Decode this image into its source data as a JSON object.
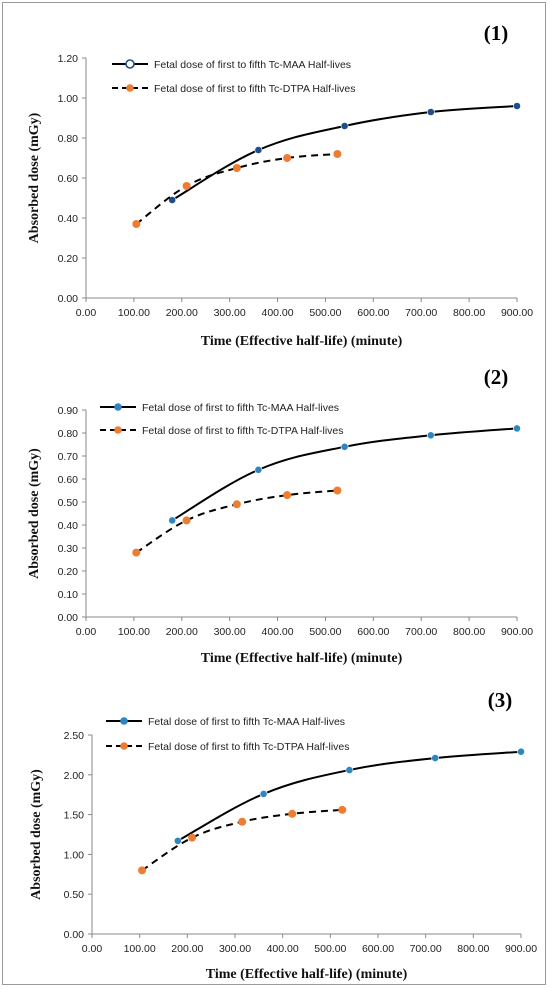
{
  "chart_data": [
    {
      "type": "line",
      "panel_label": "(1)",
      "xlabel": "Time (Effective half-life) (minute)",
      "ylabel": "Absorbed dose (mGy)",
      "xlim": [
        0,
        900
      ],
      "ylim": [
        0,
        1.2
      ],
      "xticks": [
        "0.00",
        "100.00",
        "200.00",
        "300.00",
        "400.00",
        "500.00",
        "600.00",
        "700.00",
        "800.00",
        "900.00"
      ],
      "yticks": [
        "0.00",
        "0.20",
        "0.40",
        "0.60",
        "0.80",
        "1.00",
        "1.20"
      ],
      "legend_marker_style": "open-circle",
      "series": [
        {
          "name": "Fetal dose of first to fifth Tc-MAA Half-lives",
          "color": "#1f4e8c",
          "dash": false,
          "x": [
            180,
            360,
            540,
            720,
            900
          ],
          "y": [
            0.49,
            0.74,
            0.86,
            0.93,
            0.96
          ]
        },
        {
          "name": "Fetal dose of first to fifth Tc-DTPA Half-lives",
          "color": "#ed7d31",
          "dash": true,
          "x": [
            105,
            210,
            315,
            420,
            525
          ],
          "y": [
            0.37,
            0.56,
            0.65,
            0.7,
            0.72
          ]
        }
      ]
    },
    {
      "type": "line",
      "panel_label": "(2)",
      "xlabel": "Time (Effective half-life) (minute)",
      "ylabel": "Absorbed dose (mGy)",
      "xlim": [
        0,
        900
      ],
      "ylim": [
        0,
        0.9
      ],
      "xticks": [
        "0.00",
        "100.00",
        "200.00",
        "300.00",
        "400.00",
        "500.00",
        "600.00",
        "700.00",
        "800.00",
        "900.00"
      ],
      "yticks": [
        "0.00",
        "0.10",
        "0.20",
        "0.30",
        "0.40",
        "0.50",
        "0.60",
        "0.70",
        "0.80",
        "0.90"
      ],
      "legend_marker_style": "filled-circle",
      "series": [
        {
          "name": "Fetal dose of first to fifth Tc-MAA Half-lives",
          "color": "#2e86c1",
          "dash": false,
          "x": [
            180,
            360,
            540,
            720,
            900
          ],
          "y": [
            0.42,
            0.64,
            0.74,
            0.79,
            0.82
          ]
        },
        {
          "name": "Fetal dose of first to fifth Tc-DTPA Half-lives",
          "color": "#ed7d31",
          "dash": true,
          "x": [
            105,
            210,
            315,
            420,
            525
          ],
          "y": [
            0.28,
            0.42,
            0.49,
            0.53,
            0.55
          ]
        }
      ]
    },
    {
      "type": "line",
      "panel_label": "(3)",
      "xlabel": "Time (Effective half-life) (minute)",
      "ylabel": "Absorbed dose (mGy)",
      "xlim": [
        0,
        900
      ],
      "ylim": [
        0,
        2.5
      ],
      "xticks": [
        "0.00",
        "100.00",
        "200.00",
        "300.00",
        "400.00",
        "500.00",
        "600.00",
        "700.00",
        "800.00",
        "900.00"
      ],
      "yticks": [
        "0.00",
        "0.50",
        "1.00",
        "1.50",
        "2.00",
        "2.50"
      ],
      "legend_marker_style": "filled-circle",
      "series": [
        {
          "name": "Fetal dose of first to fifth Tc-MAA Half-lives",
          "color": "#2e86c1",
          "dash": false,
          "x": [
            180,
            360,
            540,
            720,
            900
          ],
          "y": [
            1.17,
            1.76,
            2.06,
            2.21,
            2.29
          ]
        },
        {
          "name": "Fetal dose of first to fifth Tc-DTPA Half-lives",
          "color": "#ed7d31",
          "dash": true,
          "x": [
            105,
            210,
            315,
            420,
            525
          ],
          "y": [
            0.8,
            1.21,
            1.41,
            1.51,
            1.56
          ]
        }
      ]
    }
  ]
}
